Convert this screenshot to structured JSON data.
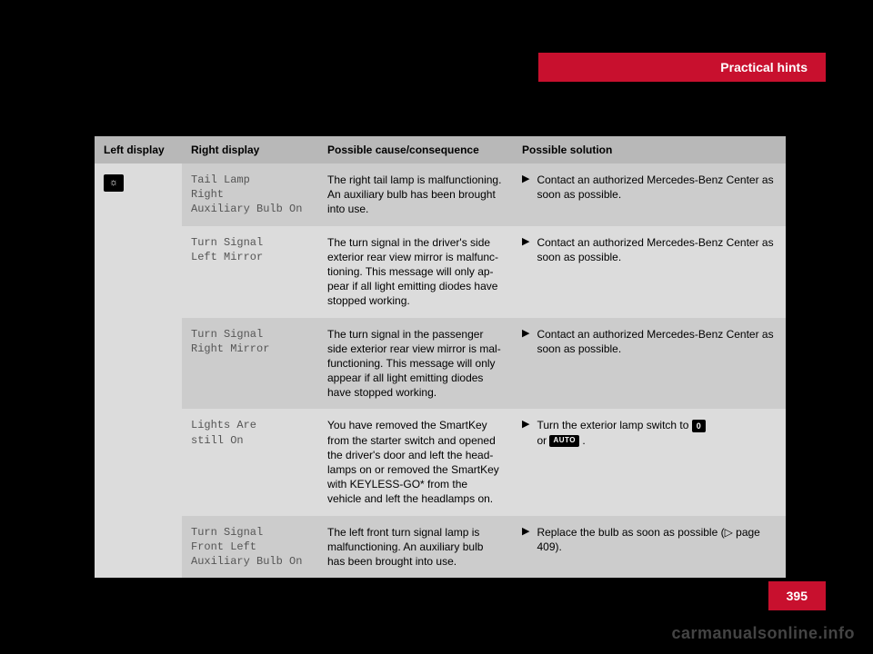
{
  "header_tab": "Practical hints",
  "page_number": "395",
  "watermark": "carmanualsonline.info",
  "table": {
    "headers": [
      "Left display",
      "Right display",
      "Possible cause/consequence",
      "Possible solution"
    ],
    "left_icon": "☼",
    "rows": [
      {
        "right_display": "Tail Lamp\nRight\nAuxiliary Bulb On",
        "cause": "The right tail lamp is malfunction­ing. An auxiliary bulb has been brought into use.",
        "solution_text": "Contact an authorized Mercedes-Benz Center as soon as possible.",
        "solution_extra": null,
        "shade": "dark"
      },
      {
        "right_display": "Turn Signal\nLeft Mirror",
        "cause": "The turn signal in the driver's side exterior rear view mirror is malfunc­tioning. This message will only ap­pear if all light emitting diodes have stopped working.",
        "solution_text": "Contact an authorized Mercedes-Benz Center as soon as possible.",
        "solution_extra": null,
        "shade": "light"
      },
      {
        "right_display": "Turn Signal\nRight Mirror",
        "cause": "The turn signal in the passenger side exterior rear view mirror is mal­functioning. This message will only appear if all light emitting diodes have stopped working.",
        "solution_text": "Contact an authorized Mercedes-Benz Center as soon as possible.",
        "solution_extra": null,
        "shade": "dark"
      },
      {
        "right_display": "Lights Are\nstill On",
        "cause": "You have removed the SmartKey from the starter switch and opened the driver's door and left the head­lamps on or removed the SmartKey with KEYLESS-GO* from the vehicle and left the headlamps on.",
        "solution_text": "Turn the exterior lamp switch to ",
        "solution_extra": "pills",
        "shade": "light"
      },
      {
        "right_display": "Turn Signal\nFront Left\nAuxiliary Bulb On",
        "cause": "The left front turn signal lamp is malfunctioning. An auxiliary bulb has been brought into use.",
        "solution_text": "Replace the bulb as soon as possible (▷ page 409).",
        "solution_extra": null,
        "shade": "dark"
      }
    ]
  }
}
